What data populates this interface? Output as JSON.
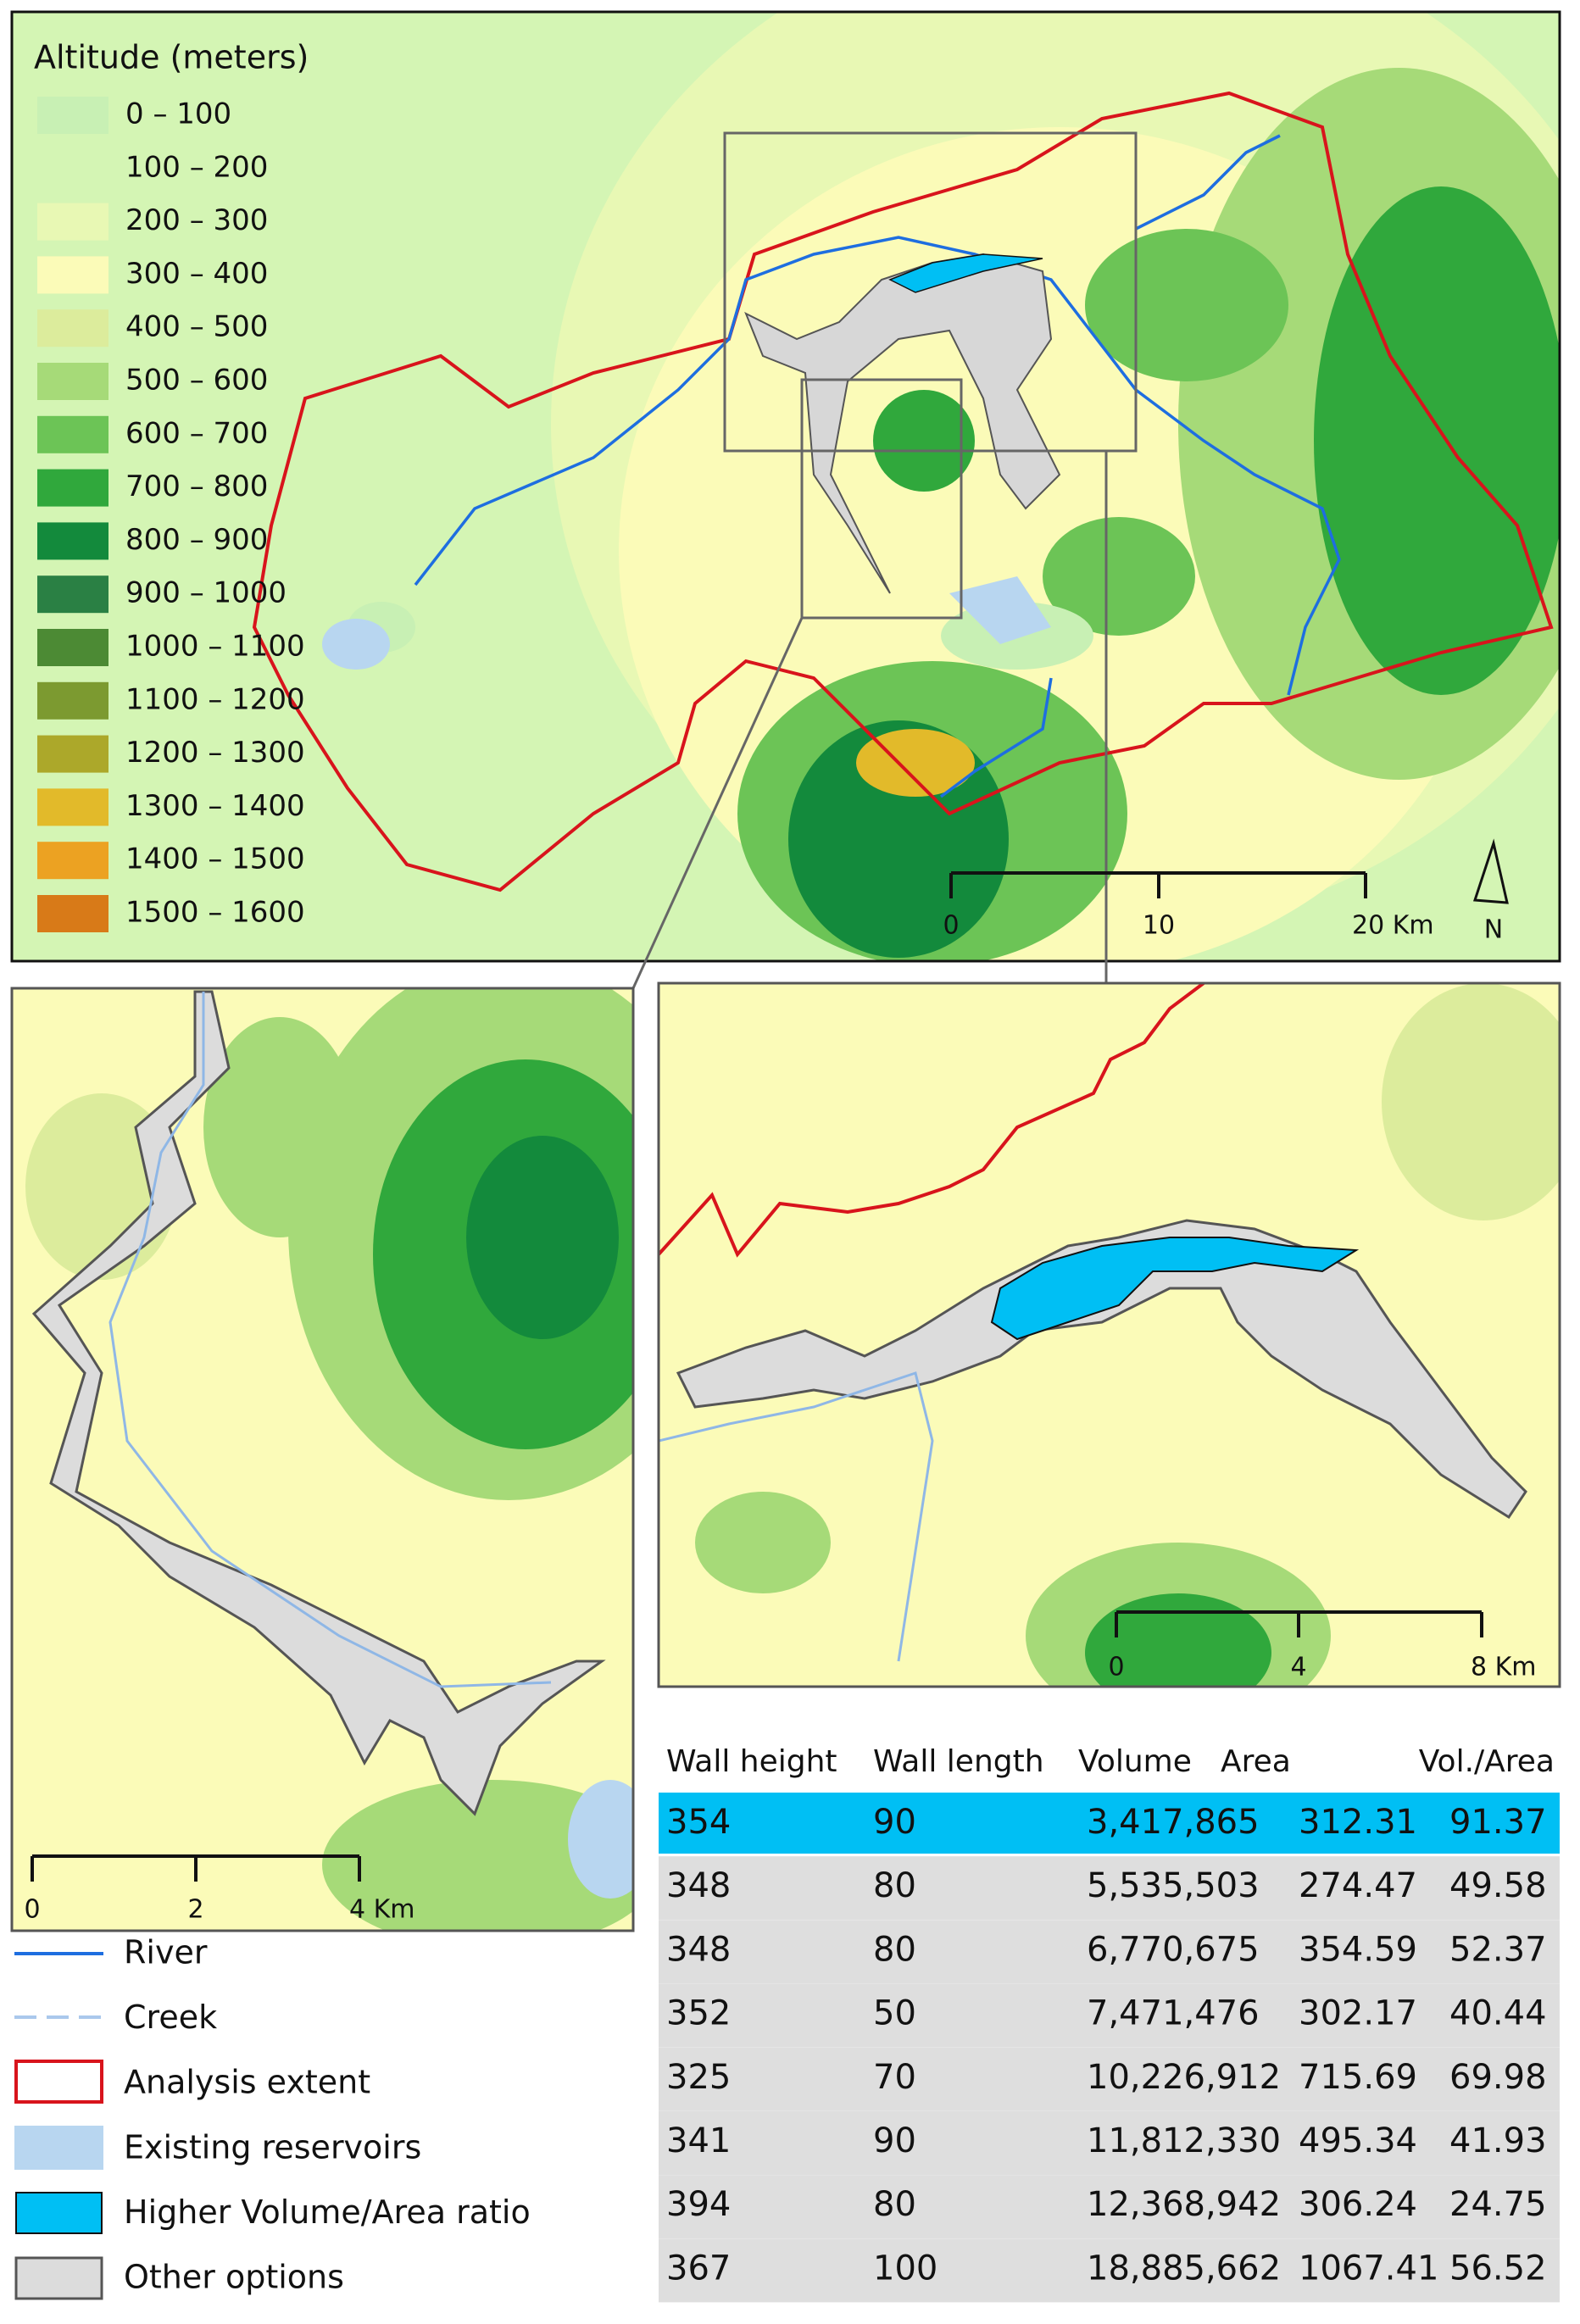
{
  "main_map": {
    "legend_title": "Altitude (meters)",
    "altitude_classes": [
      {
        "label": "0 – 100",
        "color": "#c8f0b4"
      },
      {
        "label": "100 – 200",
        "color": "#d4f5b4"
      },
      {
        "label": "200 – 300",
        "color": "#e8f8b4"
      },
      {
        "label": "300 – 400",
        "color": "#fbfbb8"
      },
      {
        "label": "400 – 500",
        "color": "#dcec9c"
      },
      {
        "label": "500 – 600",
        "color": "#a6da78"
      },
      {
        "label": "600 – 700",
        "color": "#6cc456"
      },
      {
        "label": "700 – 800",
        "color": "#30a83c"
      },
      {
        "label": "800 – 900",
        "color": "#138a3c"
      },
      {
        "label": "900 – 1000",
        "color": "#2a8044"
      },
      {
        "label": "1000 – 1100",
        "color": "#4c8a34"
      },
      {
        "label": "1100 – 1200",
        "color": "#7c9a30"
      },
      {
        "label": "1200 – 1300",
        "color": "#aca82a"
      },
      {
        "label": "1300 – 1400",
        "color": "#e2ba2a"
      },
      {
        "label": "1400 – 1500",
        "color": "#eca222"
      },
      {
        "label": "1500 – 1600",
        "color": "#d87a18"
      }
    ],
    "scale_labels": [
      "0",
      "10",
      "20 Km"
    ],
    "north": "N"
  },
  "inset_left": {
    "scale_labels": [
      "0",
      "2",
      "4 Km"
    ]
  },
  "inset_right": {
    "scale_labels": [
      "0",
      "4",
      "8 Km"
    ]
  },
  "map_legend": [
    "River",
    "Creek",
    "Analysis extent",
    "Existing reservoirs",
    "Higher Volume/Area ratio",
    "Other options"
  ],
  "table": {
    "columns": [
      "Wall height",
      "Wall length",
      "Volume",
      "Area",
      "Vol./Area"
    ],
    "rows": [
      [
        "354",
        "90",
        "3,417,865",
        "312.31",
        "91.37"
      ],
      [
        "348",
        "80",
        "5,535,503",
        "274.47",
        "49.58"
      ],
      [
        "348",
        "80",
        "6,770,675",
        "354.59",
        "52.37"
      ],
      [
        "352",
        "50",
        "7,471,476",
        "302.17",
        "40.44"
      ],
      [
        "325",
        "70",
        "10,226,912",
        "715.69",
        "69.98"
      ],
      [
        "341",
        "90",
        "11,812,330",
        "495.34",
        "41.93"
      ],
      [
        "394",
        "80",
        "12,368,942",
        "306.24",
        "24.75"
      ],
      [
        "367",
        "100",
        "18,885,662",
        "1067.41",
        "56.52"
      ]
    ]
  }
}
